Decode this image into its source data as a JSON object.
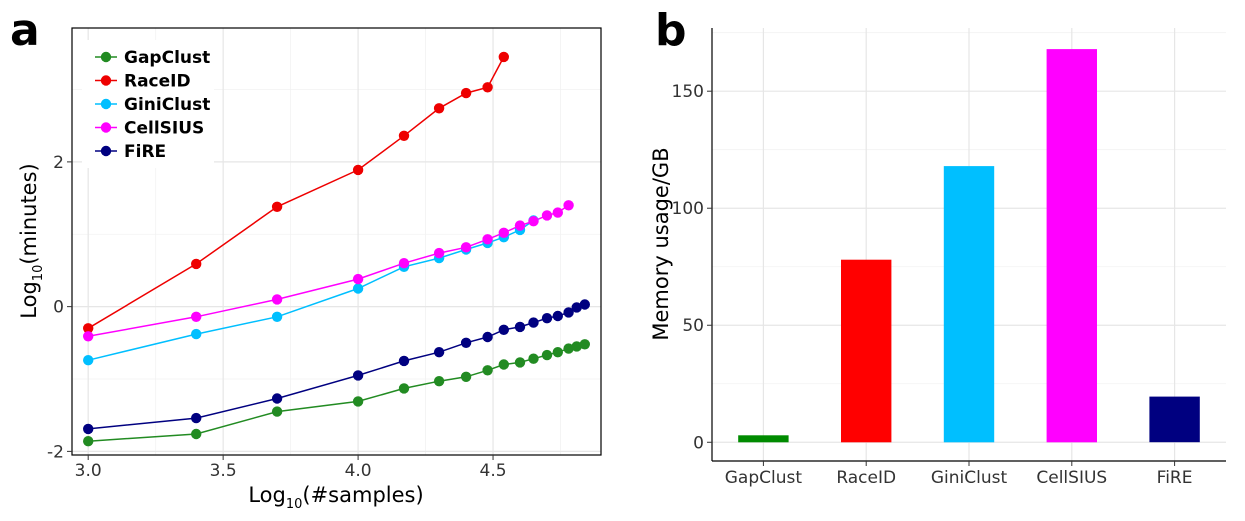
{
  "panels": {
    "a": "a",
    "b": "b"
  },
  "chart_data": [
    {
      "type": "line",
      "panel": "a",
      "xlabel_prefix": "Log",
      "xlabel_sub": "10",
      "xlabel_suffix": "(#samples)",
      "ylabel_prefix": "Log",
      "ylabel_sub": "10",
      "ylabel_suffix": "(minutes)",
      "xlim": [
        2.94,
        4.9
      ],
      "ylim": [
        -2.05,
        3.85
      ],
      "xticks": [
        3.0,
        3.5,
        4.0,
        4.5
      ],
      "xtick_labels": [
        "3.0",
        "3.5",
        "4.0",
        "4.5"
      ],
      "yticks": [
        -2,
        0,
        2
      ],
      "ytick_labels": [
        "-2",
        "0",
        "2"
      ],
      "grid": true,
      "legend_position": "top-left",
      "series": [
        {
          "name": "GapClust",
          "color": "#228B22",
          "x": [
            3.0,
            3.4,
            3.7,
            4.0,
            4.17,
            4.3,
            4.4,
            4.48,
            4.54,
            4.6,
            4.65,
            4.7,
            4.74,
            4.78,
            4.81,
            4.84
          ],
          "y": [
            -1.86,
            -1.76,
            -1.45,
            -1.31,
            -1.13,
            -1.03,
            -0.97,
            -0.88,
            -0.8,
            -0.77,
            -0.72,
            -0.67,
            -0.63,
            -0.58,
            -0.55,
            -0.52
          ]
        },
        {
          "name": "RaceID",
          "color": "#EE0000",
          "x": [
            3.0,
            3.4,
            3.7,
            4.0,
            4.17,
            4.3,
            4.4,
            4.48,
            4.54
          ],
          "y": [
            -0.3,
            0.59,
            1.38,
            1.89,
            2.36,
            2.74,
            2.95,
            3.03,
            3.45
          ]
        },
        {
          "name": "GiniClust",
          "color": "#00BFFF",
          "x": [
            3.0,
            3.4,
            3.7,
            4.0,
            4.17,
            4.3,
            4.4,
            4.48,
            4.54,
            4.6,
            4.65
          ],
          "y": [
            -0.74,
            -0.38,
            -0.14,
            0.25,
            0.55,
            0.67,
            0.79,
            0.88,
            0.96,
            1.06,
            1.19
          ]
        },
        {
          "name": "CellSIUS",
          "color": "#FF00FF",
          "x": [
            3.0,
            3.4,
            3.7,
            4.0,
            4.17,
            4.3,
            4.4,
            4.48,
            4.54,
            4.6,
            4.65,
            4.7,
            4.74,
            4.78
          ],
          "y": [
            -0.41,
            -0.14,
            0.1,
            0.38,
            0.6,
            0.74,
            0.82,
            0.93,
            1.02,
            1.12,
            1.18,
            1.26,
            1.3,
            1.4
          ]
        },
        {
          "name": "FiRE",
          "color": "#000080",
          "x": [
            3.0,
            3.4,
            3.7,
            4.0,
            4.17,
            4.3,
            4.4,
            4.48,
            4.54,
            4.6,
            4.65,
            4.7,
            4.74,
            4.78,
            4.81,
            4.84
          ],
          "y": [
            -1.69,
            -1.54,
            -1.27,
            -0.95,
            -0.75,
            -0.63,
            -0.5,
            -0.42,
            -0.32,
            -0.28,
            -0.22,
            -0.16,
            -0.13,
            -0.08,
            -0.01,
            0.03
          ]
        }
      ]
    },
    {
      "type": "bar",
      "panel": "b",
      "ylabel": "Memory usage/GB",
      "ylim": [
        -8,
        177
      ],
      "yticks": [
        0,
        50,
        100,
        150
      ],
      "ytick_labels": [
        "0",
        "50",
        "100",
        "150"
      ],
      "grid": true,
      "categories": [
        "GapClust",
        "RaceID",
        "GiniClust",
        "CellSIUS",
        "FiRE"
      ],
      "values": [
        3,
        78,
        118,
        168,
        19.5
      ],
      "colors": [
        "#008B00",
        "#FF0000",
        "#00BFFF",
        "#FF00FF",
        "#000080"
      ]
    }
  ]
}
